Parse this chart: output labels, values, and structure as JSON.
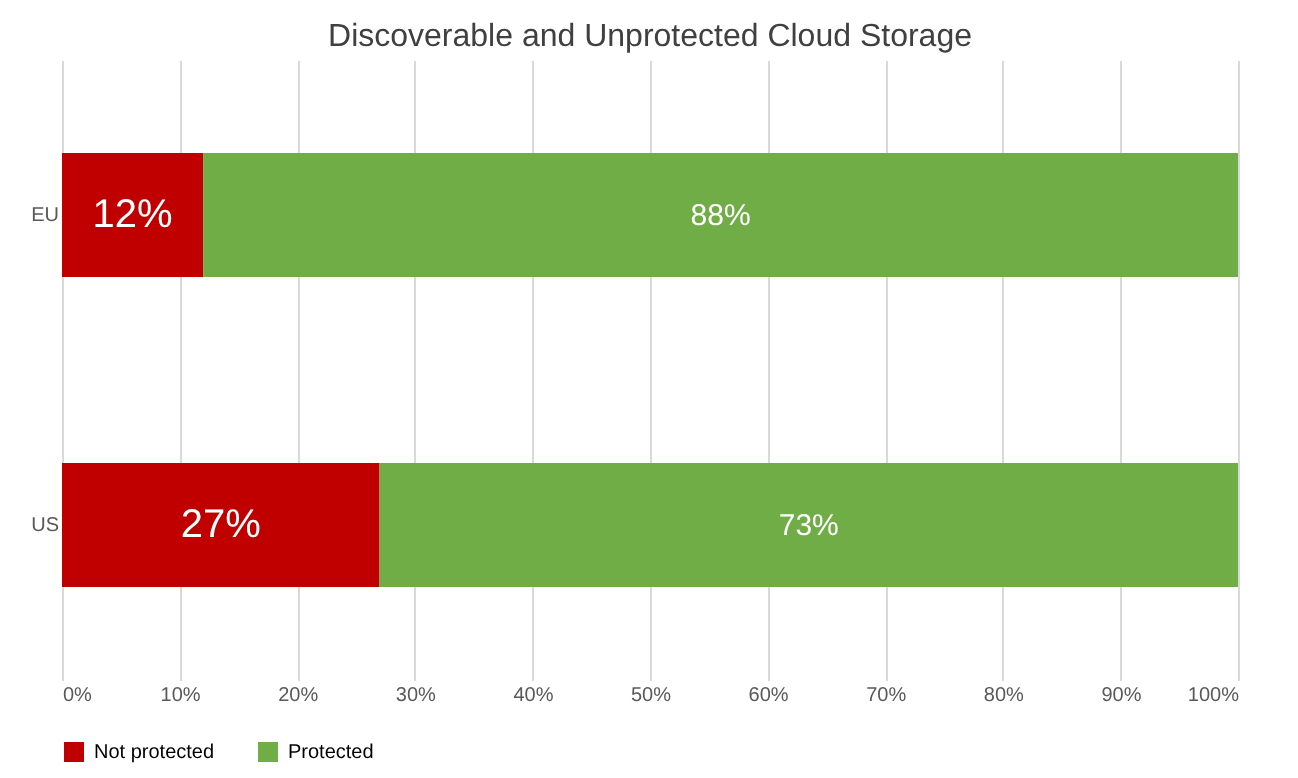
{
  "chart_data": {
    "type": "bar",
    "orientation": "horizontal",
    "stacked": true,
    "title": "Discoverable and Unprotected Cloud Storage",
    "categories": [
      "EU",
      "US"
    ],
    "series": [
      {
        "name": "Not protected",
        "color": "#c00000",
        "values": [
          12,
          27
        ],
        "value_labels": [
          "12%",
          "27%"
        ]
      },
      {
        "name": "Protected",
        "color": "#70ad47",
        "values": [
          88,
          73
        ],
        "value_labels": [
          "88%",
          "73%"
        ]
      }
    ],
    "xlim": [
      0,
      100
    ],
    "xticks": [
      {
        "value": 0,
        "label": "0%"
      },
      {
        "value": 10,
        "label": "10%"
      },
      {
        "value": 20,
        "label": "20%"
      },
      {
        "value": 30,
        "label": "30%"
      },
      {
        "value": 40,
        "label": "40%"
      },
      {
        "value": 50,
        "label": "50%"
      },
      {
        "value": 60,
        "label": "60%"
      },
      {
        "value": 70,
        "label": "70%"
      },
      {
        "value": 80,
        "label": "80%"
      },
      {
        "value": 90,
        "label": "90%"
      },
      {
        "value": 100,
        "label": "100%"
      }
    ],
    "grid": "x",
    "legend": "bottom"
  }
}
